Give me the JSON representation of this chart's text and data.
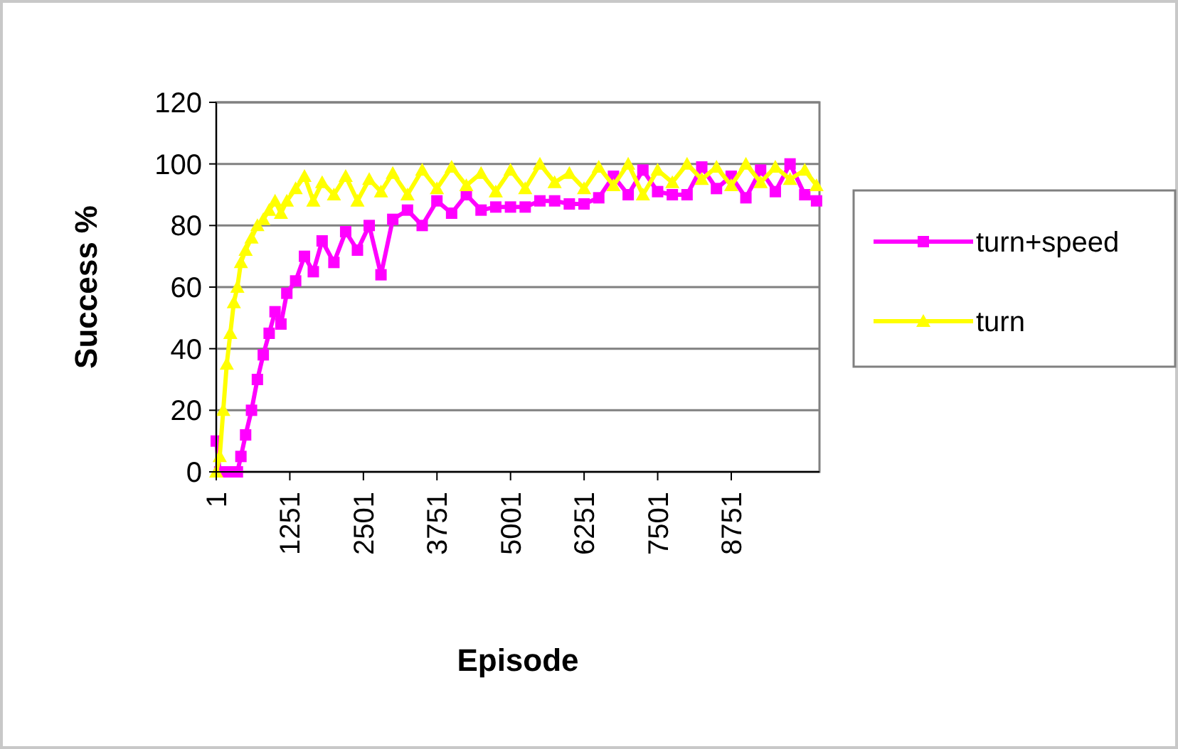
{
  "chart_data": {
    "type": "line",
    "xlabel": "Episode",
    "ylabel": "Success %",
    "x": [
      1,
      60,
      120,
      180,
      240,
      300,
      360,
      420,
      500,
      600,
      700,
      800,
      900,
      1000,
      1100,
      1200,
      1350,
      1500,
      1650,
      1800,
      2000,
      2200,
      2400,
      2600,
      2800,
      3000,
      3250,
      3500,
      3750,
      4000,
      4250,
      4500,
      4750,
      5000,
      5250,
      5500,
      5750,
      6000,
      6250,
      6500,
      6750,
      7000,
      7250,
      7500,
      7750,
      8000,
      8250,
      8500,
      8750,
      9000,
      9250,
      9500,
      9750,
      10000,
      10200
    ],
    "series": [
      {
        "name": "turn+speed",
        "color": "#ff00ff",
        "marker": "square",
        "values": [
          10,
          0,
          0,
          0,
          0,
          0,
          0,
          5,
          12,
          20,
          30,
          38,
          45,
          52,
          48,
          58,
          62,
          70,
          65,
          75,
          68,
          78,
          72,
          80,
          64,
          82,
          85,
          80,
          88,
          84,
          90,
          85,
          86,
          86,
          86,
          88,
          88,
          87,
          87,
          89,
          96,
          90,
          98,
          91,
          90,
          90,
          99,
          92,
          96,
          89,
          98,
          91,
          100,
          90,
          88
        ]
      },
      {
        "name": "turn",
        "color": "#ffff00",
        "marker": "triangle",
        "values": [
          0,
          5,
          20,
          35,
          45,
          55,
          60,
          68,
          72,
          76,
          80,
          82,
          85,
          88,
          84,
          88,
          92,
          96,
          88,
          94,
          90,
          96,
          88,
          95,
          91,
          97,
          90,
          98,
          92,
          99,
          93,
          97,
          91,
          98,
          92,
          100,
          94,
          97,
          92,
          99,
          93,
          100,
          90,
          98,
          94,
          100,
          95,
          99,
          93,
          100,
          94,
          99,
          95,
          98,
          93
        ]
      }
    ],
    "xlim": [
      1,
      10250
    ],
    "xticks": [
      1,
      1251,
      2501,
      3751,
      5001,
      6251,
      7501,
      8751
    ],
    "ylim": [
      0,
      120
    ],
    "yticks": [
      0,
      20,
      40,
      60,
      80,
      100,
      120
    ],
    "grid": "y",
    "legend": "right",
    "line_style": "solid"
  }
}
